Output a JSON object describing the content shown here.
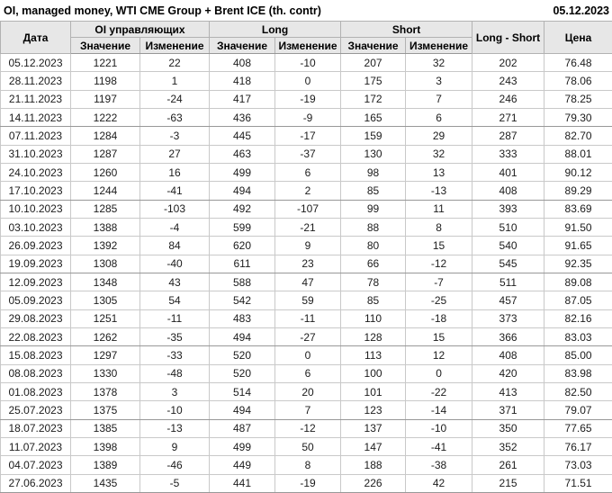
{
  "header": {
    "title": "OI, managed money, WTI CME Group + Brent ICE (th. contr)",
    "date": "05.12.2023"
  },
  "colors": {
    "up": "#149414",
    "down": "#d02b20",
    "header_bg": "#e7e7e7"
  },
  "table": {
    "group_headers": {
      "date": "Дата",
      "oi": "OI управляющих",
      "long": "Long",
      "short": "Short",
      "net": "Long - Short",
      "price": "Цена"
    },
    "sub_headers": {
      "value": "Значение",
      "change": "Изменение"
    },
    "rows": [
      {
        "date": "05.12.2023",
        "oi": "1221",
        "oi_chg": "22",
        "oi_dir": "up",
        "long": "408",
        "long_chg": "-10",
        "long_dir": "down",
        "short": "207",
        "short_chg": "32",
        "short_dir": "up",
        "net": "202",
        "price": "76.48"
      },
      {
        "date": "28.11.2023",
        "oi": "1198",
        "oi_chg": "1",
        "oi_dir": "up",
        "long": "418",
        "long_chg": "0",
        "long_dir": "up",
        "short": "175",
        "short_chg": "3",
        "short_dir": "up",
        "net": "243",
        "price": "78.06"
      },
      {
        "date": "21.11.2023",
        "oi": "1197",
        "oi_chg": "-24",
        "oi_dir": "down",
        "long": "417",
        "long_chg": "-19",
        "long_dir": "down",
        "short": "172",
        "short_chg": "7",
        "short_dir": "up",
        "net": "246",
        "price": "78.25"
      },
      {
        "date": "14.11.2023",
        "oi": "1222",
        "oi_chg": "-63",
        "oi_dir": "down",
        "long": "436",
        "long_chg": "-9",
        "long_dir": "down",
        "short": "165",
        "short_chg": "6",
        "short_dir": "up",
        "net": "271",
        "price": "79.30"
      },
      {
        "date": "07.11.2023",
        "oi": "1284",
        "oi_chg": "-3",
        "oi_dir": "down",
        "long": "445",
        "long_chg": "-17",
        "long_dir": "down",
        "short": "159",
        "short_chg": "29",
        "short_dir": "up",
        "net": "287",
        "price": "82.70"
      },
      {
        "date": "31.10.2023",
        "oi": "1287",
        "oi_chg": "27",
        "oi_dir": "up",
        "long": "463",
        "long_chg": "-37",
        "long_dir": "down",
        "short": "130",
        "short_chg": "32",
        "short_dir": "up",
        "net": "333",
        "price": "88.01"
      },
      {
        "date": "24.10.2023",
        "oi": "1260",
        "oi_chg": "16",
        "oi_dir": "up",
        "long": "499",
        "long_chg": "6",
        "long_dir": "up",
        "short": "98",
        "short_chg": "13",
        "short_dir": "up",
        "net": "401",
        "price": "90.12"
      },
      {
        "date": "17.10.2023",
        "oi": "1244",
        "oi_chg": "-41",
        "oi_dir": "down",
        "long": "494",
        "long_chg": "2",
        "long_dir": "up",
        "short": "85",
        "short_chg": "-13",
        "short_dir": "down",
        "net": "408",
        "price": "89.29"
      },
      {
        "date": "10.10.2023",
        "oi": "1285",
        "oi_chg": "-103",
        "oi_dir": "down",
        "long": "492",
        "long_chg": "-107",
        "long_dir": "down",
        "short": "99",
        "short_chg": "11",
        "short_dir": "up",
        "net": "393",
        "price": "83.69"
      },
      {
        "date": "03.10.2023",
        "oi": "1388",
        "oi_chg": "-4",
        "oi_dir": "down",
        "long": "599",
        "long_chg": "-21",
        "long_dir": "down",
        "short": "88",
        "short_chg": "8",
        "short_dir": "up",
        "net": "510",
        "price": "91.50"
      },
      {
        "date": "26.09.2023",
        "oi": "1392",
        "oi_chg": "84",
        "oi_dir": "up",
        "long": "620",
        "long_chg": "9",
        "long_dir": "up",
        "short": "80",
        "short_chg": "15",
        "short_dir": "up",
        "net": "540",
        "price": "91.65"
      },
      {
        "date": "19.09.2023",
        "oi": "1308",
        "oi_chg": "-40",
        "oi_dir": "down",
        "long": "611",
        "long_chg": "23",
        "long_dir": "up",
        "short": "66",
        "short_chg": "-12",
        "short_dir": "down",
        "net": "545",
        "price": "92.35"
      },
      {
        "date": "12.09.2023",
        "oi": "1348",
        "oi_chg": "43",
        "oi_dir": "up",
        "long": "588",
        "long_chg": "47",
        "long_dir": "up",
        "short": "78",
        "short_chg": "-7",
        "short_dir": "down",
        "net": "511",
        "price": "89.08"
      },
      {
        "date": "05.09.2023",
        "oi": "1305",
        "oi_chg": "54",
        "oi_dir": "up",
        "long": "542",
        "long_chg": "59",
        "long_dir": "up",
        "short": "85",
        "short_chg": "-25",
        "short_dir": "down",
        "net": "457",
        "price": "87.05"
      },
      {
        "date": "29.08.2023",
        "oi": "1251",
        "oi_chg": "-11",
        "oi_dir": "down",
        "long": "483",
        "long_chg": "-11",
        "long_dir": "down",
        "short": "110",
        "short_chg": "-18",
        "short_dir": "down",
        "net": "373",
        "price": "82.16"
      },
      {
        "date": "22.08.2023",
        "oi": "1262",
        "oi_chg": "-35",
        "oi_dir": "down",
        "long": "494",
        "long_chg": "-27",
        "long_dir": "down",
        "short": "128",
        "short_chg": "15",
        "short_dir": "up",
        "net": "366",
        "price": "83.03"
      },
      {
        "date": "15.08.2023",
        "oi": "1297",
        "oi_chg": "-33",
        "oi_dir": "down",
        "long": "520",
        "long_chg": "0",
        "long_dir": "up",
        "short": "113",
        "short_chg": "12",
        "short_dir": "up",
        "net": "408",
        "price": "85.00"
      },
      {
        "date": "08.08.2023",
        "oi": "1330",
        "oi_chg": "-48",
        "oi_dir": "down",
        "long": "520",
        "long_chg": "6",
        "long_dir": "up",
        "short": "100",
        "short_chg": "0",
        "short_dir": "down",
        "net": "420",
        "price": "83.98"
      },
      {
        "date": "01.08.2023",
        "oi": "1378",
        "oi_chg": "3",
        "oi_dir": "up",
        "long": "514",
        "long_chg": "20",
        "long_dir": "up",
        "short": "101",
        "short_chg": "-22",
        "short_dir": "down",
        "net": "413",
        "price": "82.50"
      },
      {
        "date": "25.07.2023",
        "oi": "1375",
        "oi_chg": "-10",
        "oi_dir": "down",
        "long": "494",
        "long_chg": "7",
        "long_dir": "up",
        "short": "123",
        "short_chg": "-14",
        "short_dir": "down",
        "net": "371",
        "price": "79.07"
      },
      {
        "date": "18.07.2023",
        "oi": "1385",
        "oi_chg": "-13",
        "oi_dir": "down",
        "long": "487",
        "long_chg": "-12",
        "long_dir": "down",
        "short": "137",
        "short_chg": "-10",
        "short_dir": "down",
        "net": "350",
        "price": "77.65"
      },
      {
        "date": "11.07.2023",
        "oi": "1398",
        "oi_chg": "9",
        "oi_dir": "up",
        "long": "499",
        "long_chg": "50",
        "long_dir": "up",
        "short": "147",
        "short_chg": "-41",
        "short_dir": "down",
        "net": "352",
        "price": "76.17"
      },
      {
        "date": "04.07.2023",
        "oi": "1389",
        "oi_chg": "-46",
        "oi_dir": "down",
        "long": "449",
        "long_chg": "8",
        "long_dir": "up",
        "short": "188",
        "short_chg": "-38",
        "short_dir": "down",
        "net": "261",
        "price": "73.03"
      },
      {
        "date": "27.06.2023",
        "oi": "1435",
        "oi_chg": "-5",
        "oi_dir": "down",
        "long": "441",
        "long_chg": "-19",
        "long_dir": "down",
        "short": "226",
        "short_chg": "42",
        "short_dir": "up",
        "net": "215",
        "price": "71.51"
      }
    ]
  }
}
